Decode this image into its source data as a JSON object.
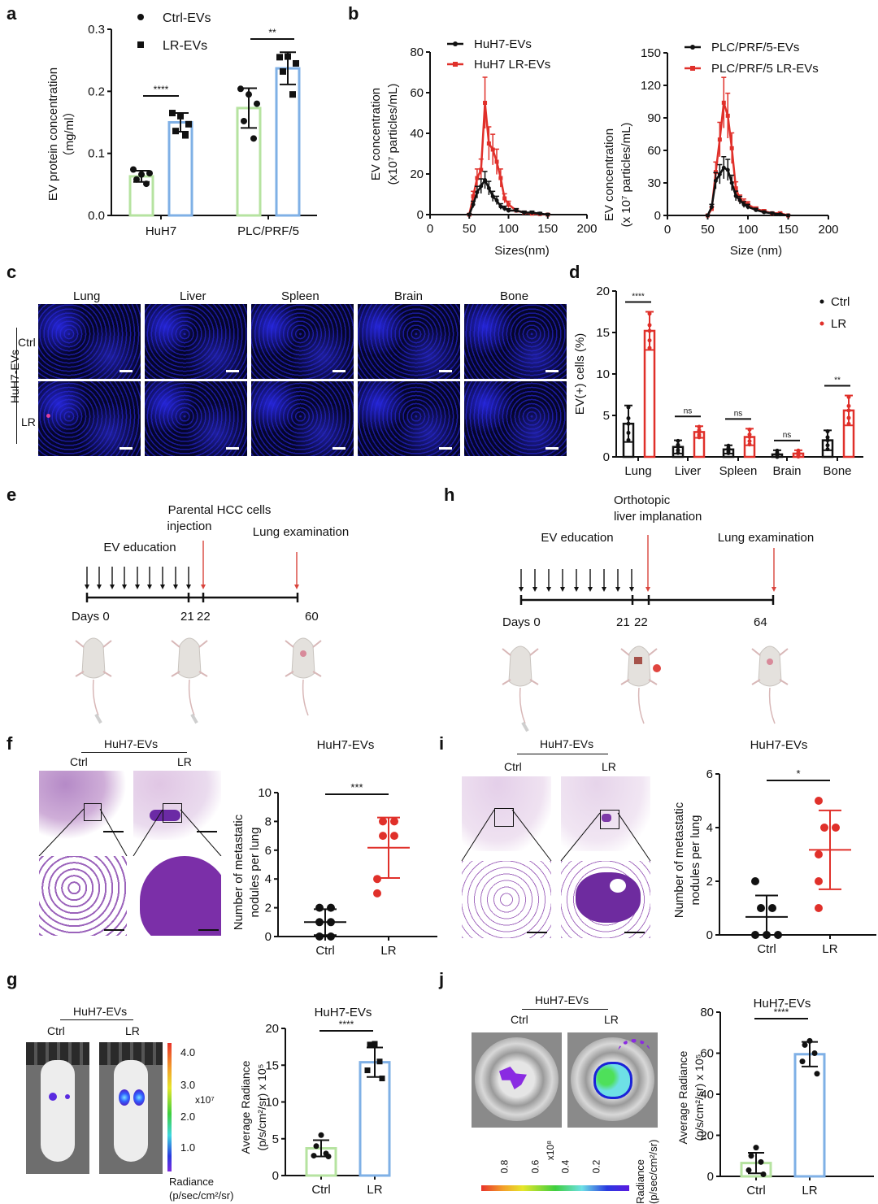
{
  "panel_letters": {
    "a": "a",
    "b": "b",
    "c": "c",
    "d": "d",
    "e": "e",
    "f": "f",
    "g": "g",
    "h": "h",
    "i": "i",
    "j": "j"
  },
  "colors": {
    "green_bar": "#b6e3a0",
    "blue_bar": "#7fb0e6",
    "red": "#e0302a",
    "black": "#111111",
    "red_arrow": "#d9443c"
  },
  "chart_data": [
    {
      "id": "a",
      "type": "bar",
      "ylabel": "EV protein concentration（mg/ml）",
      "ylabel_line1": "EV protein concentration",
      "ylabel_line2": "（mg/ml）",
      "ylim": [
        0,
        0.3
      ],
      "yticks": [
        "0.0",
        "0.1",
        "0.2",
        "0.3"
      ],
      "categories": [
        "HuH7",
        "PLC/PRF/5"
      ],
      "legend": [
        "Ctrl-EVs",
        "LR-EVs"
      ],
      "series": [
        {
          "name": "Ctrl-EVs",
          "values": [
            0.063,
            0.173
          ],
          "sd": [
            0.009,
            0.032
          ],
          "points": [
            [
              0.074,
              0.066,
              0.068,
              0.058,
              0.051
            ],
            [
              0.204,
              0.195,
              0.18,
              0.152,
              0.124
            ]
          ]
        },
        {
          "name": "LR-EVs",
          "values": [
            0.15,
            0.237
          ],
          "sd": [
            0.015,
            0.026
          ],
          "points": [
            [
              0.165,
              0.16,
              0.147,
              0.136,
              0.129
            ],
            [
              0.255,
              0.256,
              0.245,
              0.232,
              0.195
            ]
          ]
        }
      ],
      "significance": [
        "****",
        "**"
      ]
    },
    {
      "id": "b1",
      "type": "line",
      "xlabel": "Sizes(nm)",
      "ylabel_line1": "EV concentration",
      "ylabel_line2": "(x10⁷ particles/mL)",
      "xlim": [
        0,
        200
      ],
      "ylim": [
        0,
        80
      ],
      "xticks": [
        "0",
        "50",
        "100",
        "150",
        "200"
      ],
      "yticks": [
        "0",
        "20",
        "40",
        "60",
        "80"
      ],
      "series": [
        {
          "name": "HuH7-EVs",
          "x": [
            50,
            55,
            60,
            65,
            70,
            75,
            80,
            85,
            90,
            95,
            100,
            110,
            120,
            130,
            140,
            150
          ],
          "values": [
            0,
            5,
            11,
            14,
            17,
            13,
            9,
            7,
            4,
            3,
            2,
            2,
            1,
            1,
            0.5,
            0
          ]
        },
        {
          "name": "HuH7 LR-EVs",
          "x": [
            50,
            55,
            60,
            65,
            70,
            75,
            80,
            85,
            90,
            95,
            100,
            110,
            120,
            130,
            140,
            150
          ],
          "values": [
            0,
            9,
            18,
            22,
            55,
            35,
            32,
            26,
            18,
            8,
            5,
            2,
            1,
            0.5,
            0.3,
            0
          ]
        }
      ]
    },
    {
      "id": "b2",
      "type": "line",
      "xlabel": "Size (nm)",
      "ylabel_line1": "EV concentration",
      "ylabel_line2": "(x 10⁷ particles/mL)",
      "xlim": [
        0,
        200
      ],
      "ylim": [
        0,
        150
      ],
      "xticks": [
        "0",
        "50",
        "100",
        "150",
        "200"
      ],
      "yticks": [
        "0",
        "30",
        "60",
        "90",
        "120",
        "150"
      ],
      "series": [
        {
          "name": "PLC/PRF/5-EVs",
          "x": [
            50,
            55,
            60,
            65,
            70,
            75,
            80,
            85,
            90,
            95,
            100,
            110,
            120,
            130,
            140,
            150
          ],
          "values": [
            0,
            8,
            32,
            38,
            44,
            42,
            30,
            18,
            14,
            10,
            8,
            5,
            3,
            2,
            1,
            0
          ]
        },
        {
          "name": "PLC/PRF/5 LR-EVs",
          "x": [
            50,
            55,
            60,
            65,
            70,
            75,
            80,
            85,
            90,
            95,
            100,
            110,
            120,
            130,
            140,
            150
          ],
          "values": [
            0,
            6,
            40,
            70,
            104,
            92,
            62,
            25,
            15,
            12,
            10,
            6,
            4,
            2,
            2,
            0
          ]
        }
      ]
    },
    {
      "id": "d",
      "type": "bar",
      "ylabel": "EV(+) cells (%)",
      "ylim": [
        0,
        20
      ],
      "yticks": [
        "0",
        "5",
        "10",
        "15",
        "20"
      ],
      "categories": [
        "Lung",
        "Liver",
        "Spleen",
        "Brain",
        "Bone"
      ],
      "legend": [
        "Ctrl",
        "LR"
      ],
      "series": [
        {
          "name": "Ctrl",
          "values": [
            4.0,
            1.2,
            0.9,
            0.3,
            2.0
          ],
          "sd": [
            2.2,
            0.8,
            0.5,
            0.5,
            1.2
          ]
        },
        {
          "name": "LR",
          "values": [
            15.2,
            3.0,
            2.4,
            0.4,
            5.6
          ],
          "sd": [
            2.3,
            0.7,
            1.0,
            0.4,
            1.8
          ]
        }
      ],
      "significance": [
        "****",
        "ns",
        "ns",
        "ns",
        "**"
      ]
    },
    {
      "id": "f",
      "type": "scatter",
      "title": "HuH7-EVs",
      "ylabel_line1": "Number of metastatic",
      "ylabel_line2": "nodules per lung",
      "ylim": [
        0,
        10
      ],
      "yticks": [
        "0",
        "2",
        "4",
        "6",
        "8",
        "10"
      ],
      "categories": [
        "Ctrl",
        "LR"
      ],
      "series": [
        {
          "name": "Ctrl",
          "points": [
            2,
            2,
            1,
            1,
            0,
            0
          ],
          "mean": 1.0,
          "sd": 0.9
        },
        {
          "name": "LR",
          "points": [
            8,
            8,
            7,
            7,
            4,
            3
          ],
          "mean": 6.17,
          "sd": 2.1
        }
      ],
      "significance": "***"
    },
    {
      "id": "i",
      "type": "scatter",
      "title": "HuH7-EVs",
      "ylabel_line1": "Number of metastatic",
      "ylabel_line2": "nodules per lung",
      "ylim": [
        0,
        6
      ],
      "yticks": [
        "0",
        "2",
        "4",
        "6"
      ],
      "categories": [
        "Ctrl",
        "LR"
      ],
      "series": [
        {
          "name": "Ctrl",
          "points": [
            2,
            1,
            1,
            0,
            0,
            0
          ],
          "mean": 0.67,
          "sd": 0.8
        },
        {
          "name": "LR",
          "points": [
            5,
            4,
            4,
            3,
            2,
            1
          ],
          "mean": 3.17,
          "sd": 1.47
        }
      ],
      "significance": "*"
    },
    {
      "id": "g",
      "type": "bar",
      "title": "HuH7-EVs",
      "ylabel_line1": "Average Radiance",
      "ylabel_line2": "(p/s/cm²/sr) x 10⁵",
      "ylim": [
        0,
        20
      ],
      "yticks": [
        "0",
        "5",
        "10",
        "15",
        "20"
      ],
      "categories": [
        "Ctrl",
        "LR"
      ],
      "series": [
        {
          "name": "Ctrl",
          "value": 3.7,
          "sd": 1.1,
          "points": [
            5.5,
            4.0,
            3.0,
            2.7,
            2.6
          ]
        },
        {
          "name": "LR",
          "value": 15.4,
          "sd": 2.0,
          "points": [
            17.9,
            17.8,
            15.5,
            14.3,
            13.2
          ]
        }
      ],
      "significance": "****"
    },
    {
      "id": "j",
      "type": "bar",
      "title": "HuH7-EVs",
      "ylabel_line1": "Average Radiance",
      "ylabel_line2": "(p/s/cm²/sr) x 10⁵",
      "ylim": [
        0,
        80
      ],
      "yticks": [
        "0",
        "20",
        "40",
        "60",
        "80"
      ],
      "categories": [
        "Ctrl",
        "LR"
      ],
      "series": [
        {
          "name": "Ctrl",
          "value": 6.5,
          "sd": 5.0,
          "points": [
            14,
            10,
            7,
            3,
            1
          ]
        },
        {
          "name": "LR",
          "value": 59.5,
          "sd": 6.0,
          "points": [
            66,
            64,
            60,
            56,
            50
          ]
        }
      ],
      "significance": "****"
    }
  ],
  "panel_c": {
    "columns": [
      "Lung",
      "Liver",
      "Spleen",
      "Brain",
      "Bone"
    ],
    "rows": [
      "Ctrl",
      "LR"
    ],
    "group_label": "HuH7-EVs"
  },
  "panel_e": {
    "label_top_line1": "Parental HCC cells",
    "label_top_line2": "injection",
    "label_edu": "EV education",
    "label_exam": "Lung examination",
    "days": [
      "Days 0",
      "21",
      "22",
      "60"
    ]
  },
  "panel_h": {
    "label_top_line1": "Orthotopic",
    "label_top_line2": "liver implanation",
    "label_edu": "EV education",
    "label_exam": "Lung examination",
    "days": [
      "Days 0",
      "21",
      "22",
      "64"
    ]
  },
  "histology_f": {
    "group": "HuH7-EVs",
    "ctrl": "Ctrl",
    "lr": "LR"
  },
  "histology_i": {
    "group": "HuH7-EVs",
    "ctrl": "Ctrl",
    "lr": "LR"
  },
  "imaging_g": {
    "group": "HuH7-EVs",
    "ctrl": "Ctrl",
    "lr": "LR",
    "scale_ticks": [
      "4.0",
      "3.0",
      "2.0",
      "1.0"
    ],
    "scale_exp": "x10⁷",
    "scale_label_line1": "Radiance",
    "scale_label_line2": "(p/sec/cm²/sr)"
  },
  "imaging_j": {
    "group": "HuH7-EVs",
    "ctrl": "Ctrl",
    "lr": "LR",
    "scale_ticks": [
      "0.8",
      "0.6",
      "0.4",
      "0.2"
    ],
    "scale_exp": "x10⁸",
    "scale_label_line1": "Radiance",
    "scale_label_line2": "(p/sec/cm²/sr)"
  }
}
